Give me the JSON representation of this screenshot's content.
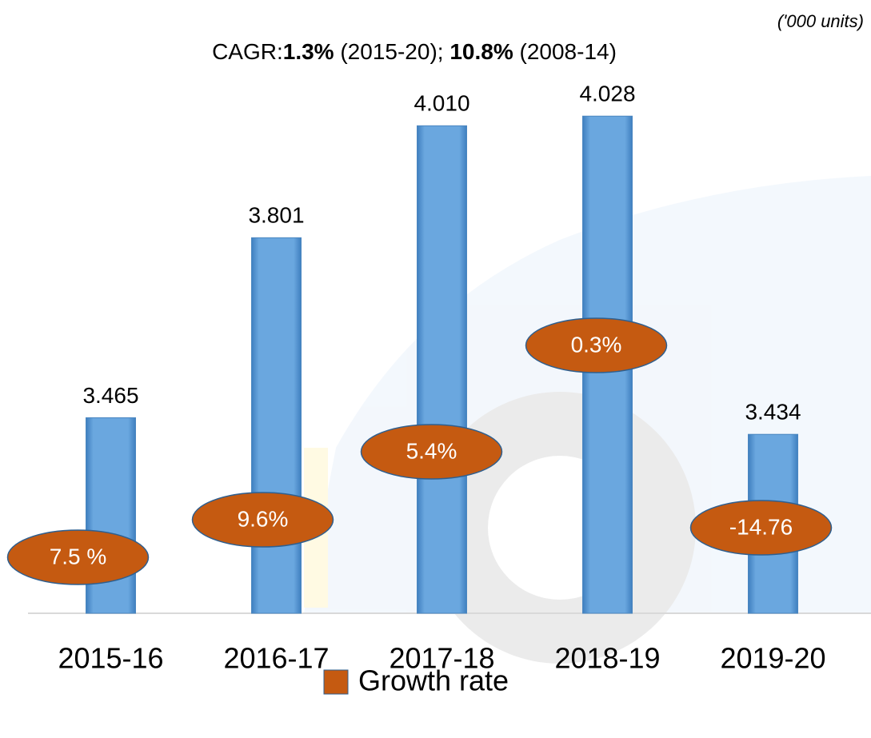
{
  "chart_data": {
    "type": "bar",
    "unit_note": "('000 units)",
    "subtitle": [
      "CAGR:",
      "1.3%",
      " (2015-20); ",
      "10.8%",
      " (2008-14)"
    ],
    "categories": [
      "2015-16",
      "2016-17",
      "2017-18",
      "2018-19",
      "2019-20"
    ],
    "series": [
      {
        "color": "#5b9bd5",
        "values": [
          3.465,
          3.801,
          4.01,
          4.028,
          3.434
        ],
        "value_labels": [
          "3.465",
          "3.801",
          "4.010",
          "4.028",
          "3.434"
        ]
      },
      {
        "name": "Growth rate",
        "color": "#c55a11",
        "values": [
          7.5,
          9.6,
          5.4,
          0.3,
          -14.76
        ],
        "value_labels": [
          "7.5 %",
          "9.6%",
          "5.4%",
          "0.3%",
          "-14.76"
        ]
      }
    ],
    "ylim": [
      3.1,
      4.1
    ]
  }
}
